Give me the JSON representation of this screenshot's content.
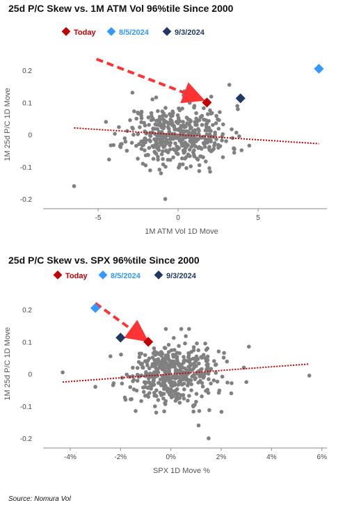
{
  "chart_data": [
    {
      "type": "scatter",
      "title": "25d P/C Skew vs. 1M ATM Vol 96%tile Since 2000",
      "xlabel": "1M ATM Vol 1D Move",
      "ylabel": "1M 25d P/C 1D Move",
      "xlim": [
        -8,
        9.3
      ],
      "ylim": [
        -0.23,
        0.25
      ],
      "xticks": [
        -5,
        0,
        5
      ],
      "xtick_labels": [
        "-5",
        "0",
        "5"
      ],
      "yticks": [
        -0.2,
        -0.1,
        0,
        0.1,
        0.2
      ],
      "ytick_labels": [
        "-0.2",
        "-0.1",
        "0",
        "0.1",
        "0.2"
      ],
      "legend": [
        {
          "name": "Today",
          "color": "#c00000"
        },
        {
          "name": "8/5/2024",
          "color": "#3399ff"
        },
        {
          "name": "9/3/2024",
          "color": "#1f3864"
        }
      ],
      "highlights": [
        {
          "name": "Today",
          "x": 1.8,
          "y": 0.1,
          "color": "#c00000"
        },
        {
          "name": "8/5/2024",
          "x": 8.8,
          "y": 0.205,
          "color": "#3399ff"
        },
        {
          "name": "9/3/2024",
          "x": 3.9,
          "y": 0.113,
          "color": "#1f3864"
        }
      ],
      "trendline": {
        "x": [
          -6.5,
          8.8
        ],
        "y": [
          0.021,
          -0.028
        ],
        "color": "#c00000"
      },
      "arrow": {
        "from": [
          -5.1,
          0.235
        ],
        "to": [
          1.2,
          0.115
        ],
        "color": "#ff3333"
      },
      "scatter_color": "#808080",
      "scatter_center": [
        0,
        0
      ],
      "scatter_spread": [
        1.6,
        0.045
      ],
      "scatter_count": 450,
      "scatter_outliers": [
        {
          "x": -6.5,
          "y": -0.16
        },
        {
          "x": -0.8,
          "y": -0.2
        },
        {
          "x": 3.2,
          "y": 0.155
        },
        {
          "x": -3.0,
          "y": 0.045
        },
        {
          "x": 2.0,
          "y": -0.115
        },
        {
          "x": -2.2,
          "y": -0.09
        },
        {
          "x": 2.8,
          "y": -0.07
        },
        {
          "x": -1.6,
          "y": 0.11
        },
        {
          "x": 0.4,
          "y": 0.135
        },
        {
          "x": 2.6,
          "y": 0.07
        },
        {
          "x": -2.6,
          "y": 0.05
        },
        {
          "x": 3.0,
          "y": -0.02
        }
      ]
    },
    {
      "type": "scatter",
      "title": "25d P/C Skew vs. SPX 96%tile Since 2000",
      "xlabel": "SPX 1D Move %",
      "ylabel": "1M 25d P/C 1D Move",
      "xlim": [
        -4.8,
        6.2
      ],
      "ylim": [
        -0.23,
        0.25
      ],
      "xticks": [
        -4,
        -2,
        0,
        2,
        4,
        6
      ],
      "xtick_labels": [
        "-4%",
        "-2%",
        "0%",
        "2%",
        "4%",
        "6%"
      ],
      "yticks": [
        -0.2,
        -0.1,
        0,
        0.1,
        0.2
      ],
      "ytick_labels": [
        "-0.2",
        "-0.1",
        "0",
        "0.1",
        "0.2"
      ],
      "legend": [
        {
          "name": "Today",
          "color": "#c00000"
        },
        {
          "name": "8/5/2024",
          "color": "#3399ff"
        },
        {
          "name": "9/3/2024",
          "color": "#1f3864"
        }
      ],
      "highlights": [
        {
          "name": "Today",
          "x": -0.9,
          "y": 0.1,
          "color": "#c00000"
        },
        {
          "name": "8/5/2024",
          "x": -3.0,
          "y": 0.205,
          "color": "#3399ff"
        },
        {
          "name": "9/3/2024",
          "x": -2.0,
          "y": 0.113,
          "color": "#1f3864"
        }
      ],
      "trendline": {
        "x": [
          -4.3,
          5.5
        ],
        "y": [
          -0.025,
          0.031
        ],
        "color": "#c00000"
      },
      "arrow": {
        "from": [
          -3.0,
          0.22
        ],
        "to": [
          -1.15,
          0.115
        ],
        "color": "#ff3333"
      },
      "scatter_color": "#808080",
      "scatter_center": [
        0,
        0
      ],
      "scatter_spread": [
        0.85,
        0.045
      ],
      "scatter_count": 450,
      "scatter_outliers": [
        {
          "x": -4.3,
          "y": 0.005
        },
        {
          "x": 5.5,
          "y": -0.005
        },
        {
          "x": 1.5,
          "y": -0.2
        },
        {
          "x": 1.1,
          "y": -0.16
        },
        {
          "x": -2.4,
          "y": 0.055
        },
        {
          "x": 3.1,
          "y": 0.085
        },
        {
          "x": -3.0,
          "y": -0.04
        },
        {
          "x": 3.0,
          "y": -0.025
        },
        {
          "x": 2.9,
          "y": 0.02
        },
        {
          "x": -1.4,
          "y": -0.115
        },
        {
          "x": -0.2,
          "y": 0.14
        },
        {
          "x": 1.9,
          "y": 0.07
        },
        {
          "x": 2.4,
          "y": -0.06
        },
        {
          "x": -1.8,
          "y": -0.08
        }
      ]
    }
  ],
  "source": "Source: Nomura Vol"
}
